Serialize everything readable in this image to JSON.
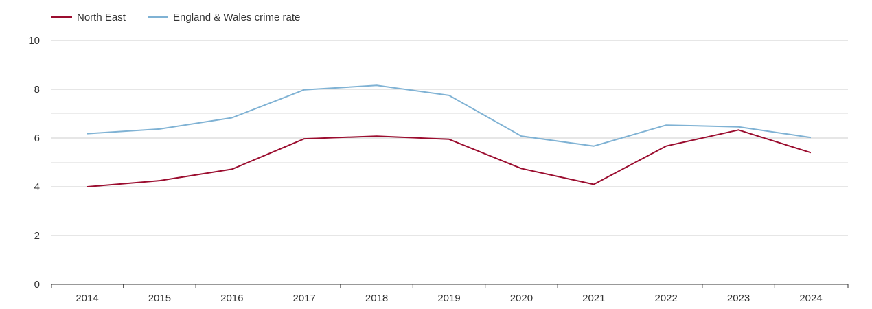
{
  "chart_data": {
    "type": "line",
    "title": "",
    "xlabel": "",
    "ylabel": "",
    "categories": [
      "2014",
      "2015",
      "2016",
      "2017",
      "2018",
      "2019",
      "2020",
      "2021",
      "2022",
      "2023",
      "2024"
    ],
    "ylim": [
      0,
      10
    ],
    "y_ticks": [
      0,
      2,
      4,
      6,
      8,
      10
    ],
    "grid": true,
    "legend_position": "top-left",
    "series": [
      {
        "name": "North East",
        "color": "#9b0d2f",
        "values": [
          4.0,
          4.25,
          4.72,
          5.97,
          6.08,
          5.95,
          4.75,
          4.1,
          5.67,
          6.33,
          5.4
        ]
      },
      {
        "name": "England & Wales crime rate",
        "color": "#7fb2d4",
        "values": [
          6.18,
          6.37,
          6.83,
          7.98,
          8.16,
          7.75,
          6.08,
          5.67,
          6.53,
          6.46,
          6.02
        ]
      }
    ]
  }
}
